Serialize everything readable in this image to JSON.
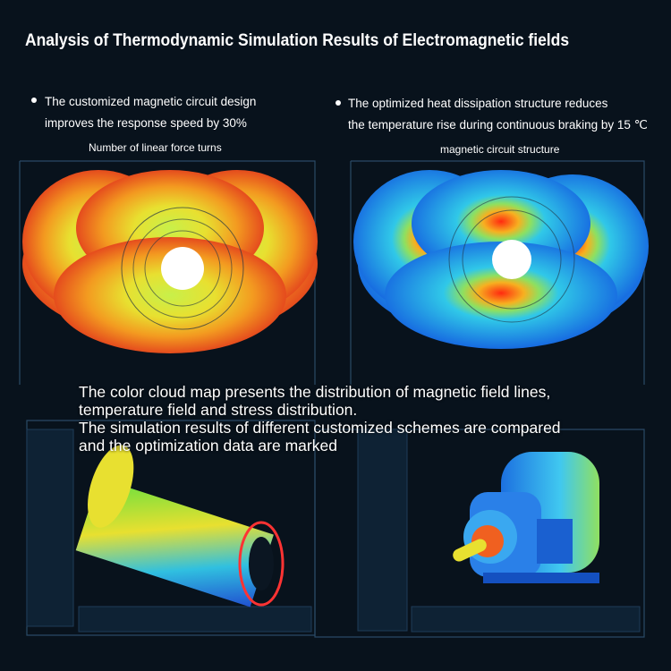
{
  "title": "Analysis of Thermodynamic Simulation Results of Electromagnetic fields",
  "bullets": [
    {
      "lines": [
        "The customized magnetic circuit design",
        "improves the response speed by 30%"
      ]
    },
    {
      "lines": [
        "The optimized heat dissipation structure reduces",
        "the temperature rise during continuous braking by 15 ℃"
      ]
    }
  ],
  "captions": [
    "Number of linear force turns",
    "magnetic circuit structure"
  ],
  "overlay": {
    "lines": [
      "The color cloud map presents the distribution of magnetic field lines,",
      "temperature field and stress distribution.",
      "The simulation results of different customized schemes are compared",
      "and the optimization data are marked"
    ]
  }
}
